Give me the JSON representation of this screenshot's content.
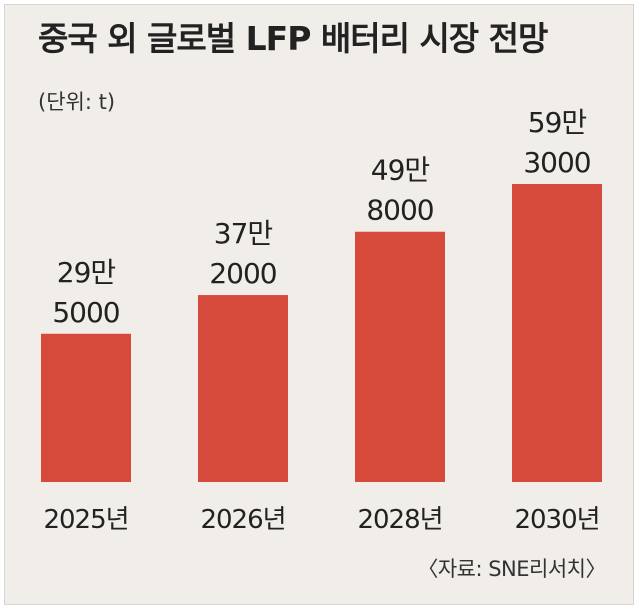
{
  "chart_data": {
    "type": "bar",
    "title": "중국 외 글로벌 LFP 배터리 시장 전망",
    "unit_label": "(단위: t)",
    "categories": [
      "2025년",
      "2026년",
      "2028년",
      "2030년"
    ],
    "values": [
      295000,
      372000,
      498000,
      593000
    ],
    "value_labels": [
      [
        "29만",
        "5000"
      ],
      [
        "37만",
        "2000"
      ],
      [
        "49만",
        "8000"
      ],
      [
        "59만",
        "3000"
      ]
    ],
    "ylim": [
      0,
      593000
    ],
    "grid": false,
    "legend": "none",
    "source": "〈자료: SNE리서치〉",
    "colors": {
      "bar": "#d64a3c",
      "background": "#f1ede9",
      "text": "#222222"
    }
  }
}
